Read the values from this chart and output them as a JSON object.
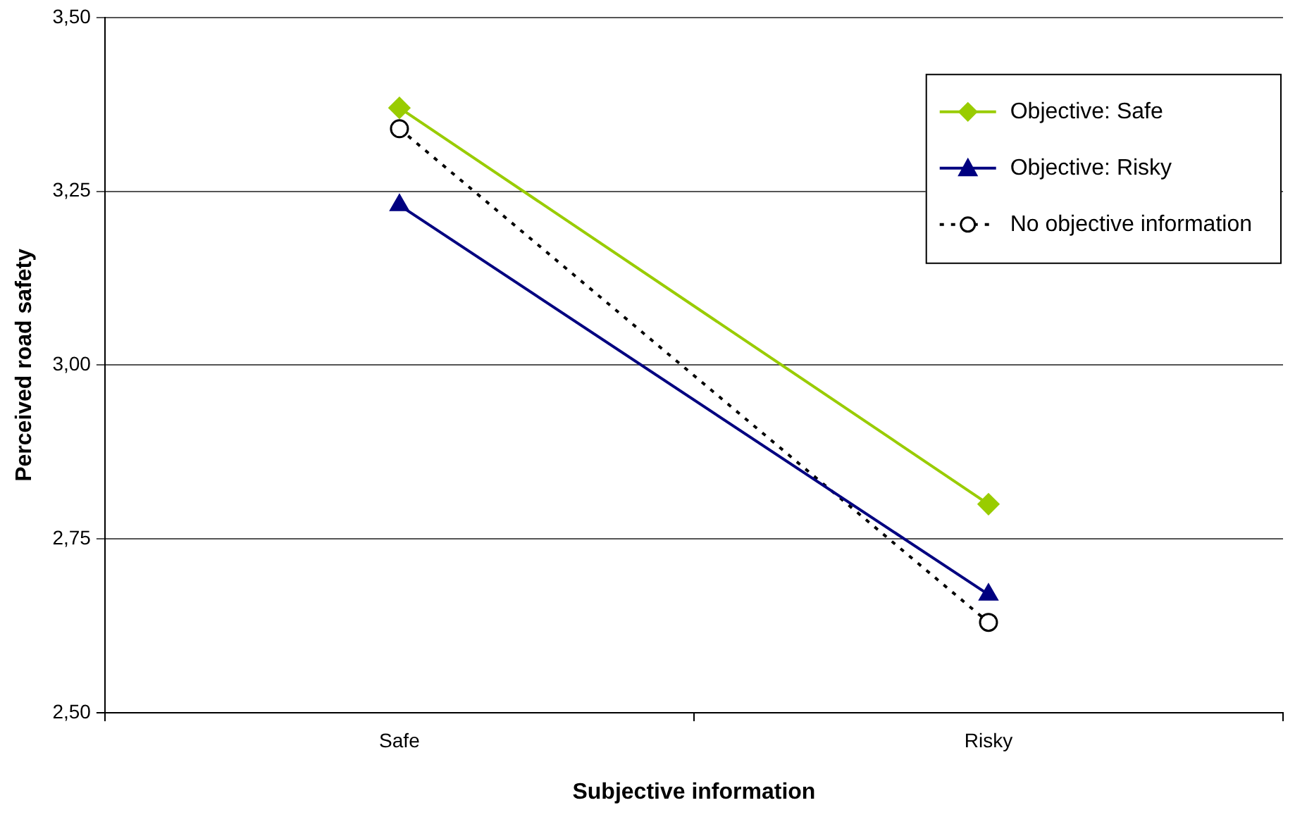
{
  "chart_data": {
    "type": "line",
    "xlabel": "Subjective information",
    "ylabel": "Perceived road safety",
    "categories": [
      "Safe",
      "Risky"
    ],
    "series": [
      {
        "name": "Objective: Safe",
        "color": "#99cc00",
        "values": [
          3.37,
          2.8
        ],
        "marker": "diamond",
        "line_style": "solid"
      },
      {
        "name": "Objective: Risky",
        "color": "#000080",
        "values": [
          3.23,
          2.67
        ],
        "marker": "triangle",
        "line_style": "solid"
      },
      {
        "name": "No objective information",
        "color": "#000000",
        "values": [
          3.34,
          2.63
        ],
        "marker": "circle",
        "line_style": "dotted"
      }
    ],
    "ylim": [
      2.5,
      3.5
    ],
    "yticks": [
      {
        "value": 2.5,
        "label": "2,50"
      },
      {
        "value": 2.75,
        "label": "2,75"
      },
      {
        "value": 3.0,
        "label": "3,00"
      },
      {
        "value": 3.25,
        "label": "3,25"
      },
      {
        "value": 3.5,
        "label": "3,50"
      }
    ],
    "grid": "y",
    "legend": "top right"
  }
}
